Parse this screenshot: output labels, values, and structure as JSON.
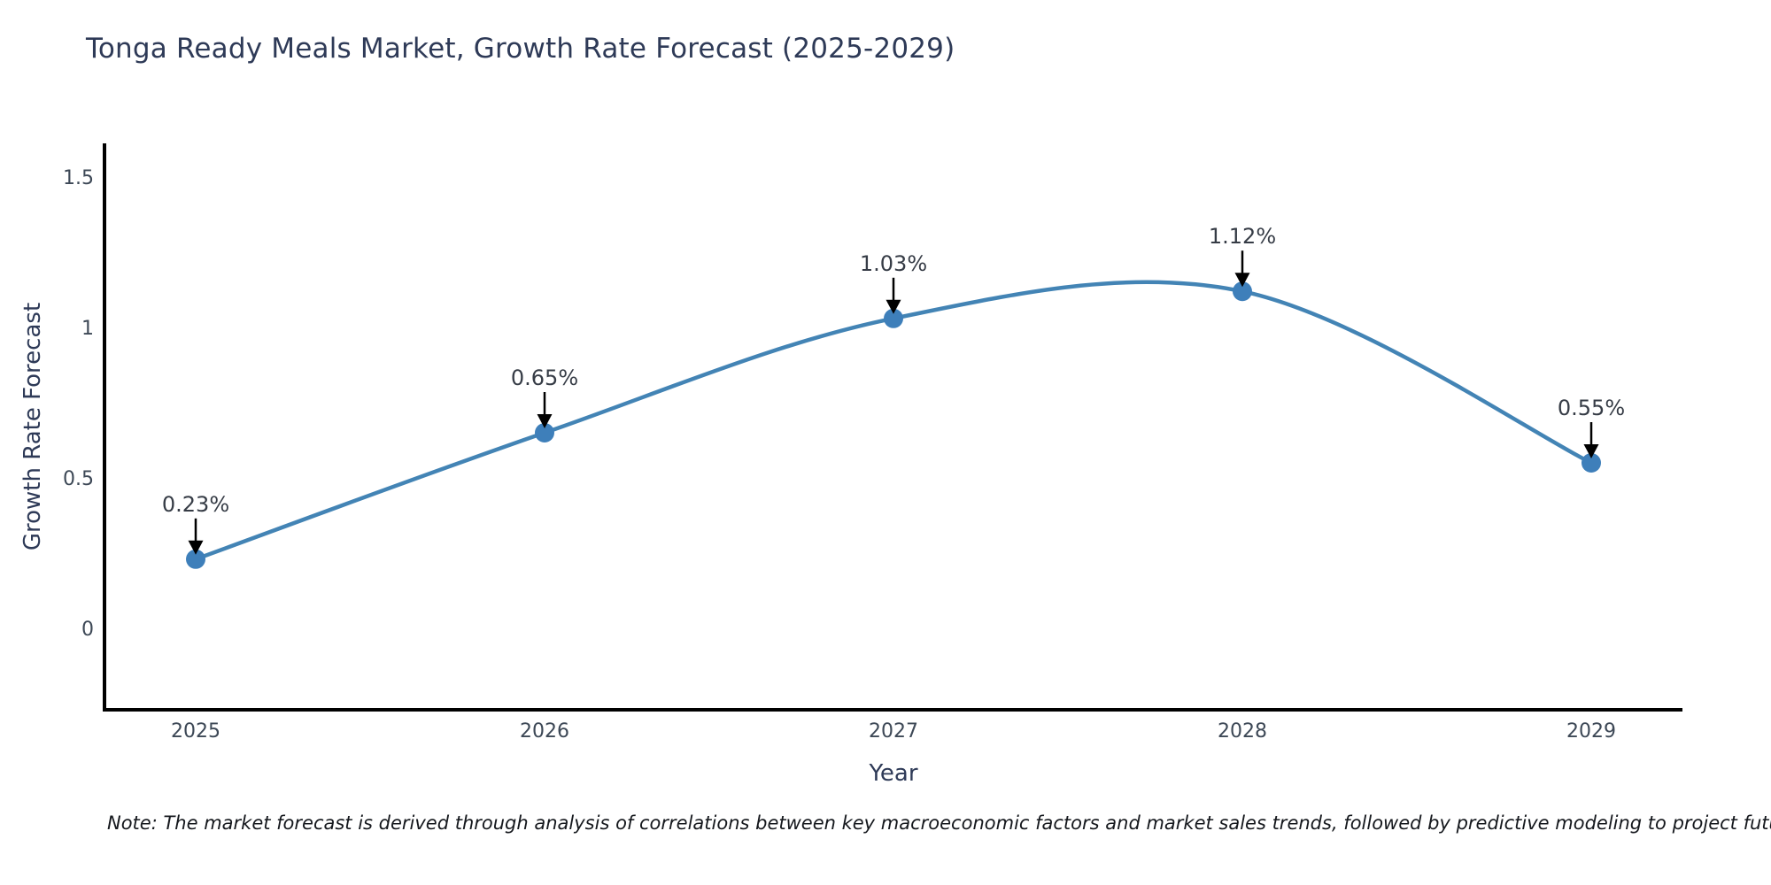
{
  "title": "Tonga Ready Meals Market, Growth Rate Forecast (2025-2029)",
  "note": "Note: The market forecast is derived through analysis of correlations between key macroeconomic factors and market sales trends, followed by predictive modeling to project future sales",
  "chart_data": {
    "type": "line",
    "title": "Tonga Ready Meals Market, Growth Rate Forecast (2025-2029)",
    "xlabel": "Year",
    "ylabel": "Growth Rate Forecast",
    "categories": [
      "2025",
      "2026",
      "2027",
      "2028",
      "2029"
    ],
    "values": [
      0.23,
      0.65,
      1.03,
      1.12,
      0.55
    ],
    "data_labels": [
      "0.23%",
      "0.65%",
      "1.03%",
      "1.12%",
      "0.55%"
    ],
    "yticks": [
      0,
      0.5,
      1,
      1.5
    ],
    "ytick_labels": [
      "0",
      "0.5",
      "1",
      "1.5"
    ],
    "ylim": [
      -0.27,
      1.61
    ],
    "grid": false,
    "legend": false,
    "smooth": true,
    "line_color": "#4384b5",
    "marker_color": "#3e7fba",
    "arrow_color": "#000000",
    "spine_color": "#000000"
  }
}
